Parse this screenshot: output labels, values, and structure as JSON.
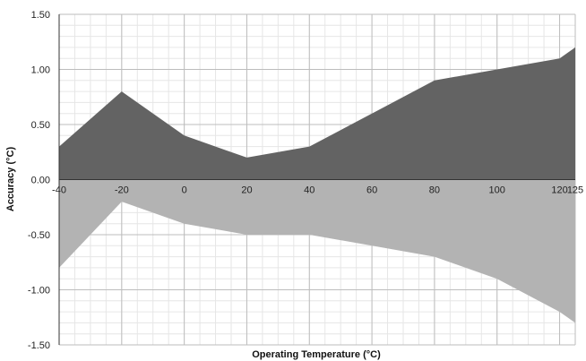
{
  "chart_data": {
    "type": "area",
    "xlabel": "Operating Temperature (°C)",
    "ylabel": "Accuracy (°C)",
    "x_ticks": [
      -40,
      -20,
      0,
      20,
      40,
      60,
      80,
      100,
      120,
      125
    ],
    "x_tick_labels": [
      "-40",
      "-20",
      "0",
      "20",
      "40",
      "60",
      "80",
      "100",
      "120",
      "125"
    ],
    "y_ticks": [
      1.5,
      1.0,
      0.5,
      0.0,
      -0.5,
      -1.0,
      -1.5
    ],
    "y_tick_labels": [
      "1.50",
      "1.00",
      "0.50",
      "0.00",
      "-0.50",
      "-1.00",
      "-1.50"
    ],
    "ylim": [
      -1.5,
      1.5
    ],
    "xlim": [
      -40,
      125
    ],
    "grid": true,
    "series": [
      {
        "color": "#636363",
        "x": [
          -40,
          -20,
          0,
          20,
          40,
          60,
          80,
          100,
          120,
          125
        ],
        "values": [
          0.3,
          0.8,
          0.4,
          0.2,
          0.3,
          0.6,
          0.9,
          1.0,
          1.1,
          1.2
        ]
      },
      {
        "color": "#b3b3b3",
        "x": [
          -40,
          -20,
          0,
          20,
          40,
          60,
          80,
          100,
          120,
          125
        ],
        "values": [
          -0.8,
          -0.2,
          -0.4,
          -0.5,
          -0.5,
          -0.6,
          -0.7,
          -0.9,
          -1.2,
          -1.3
        ]
      }
    ]
  }
}
